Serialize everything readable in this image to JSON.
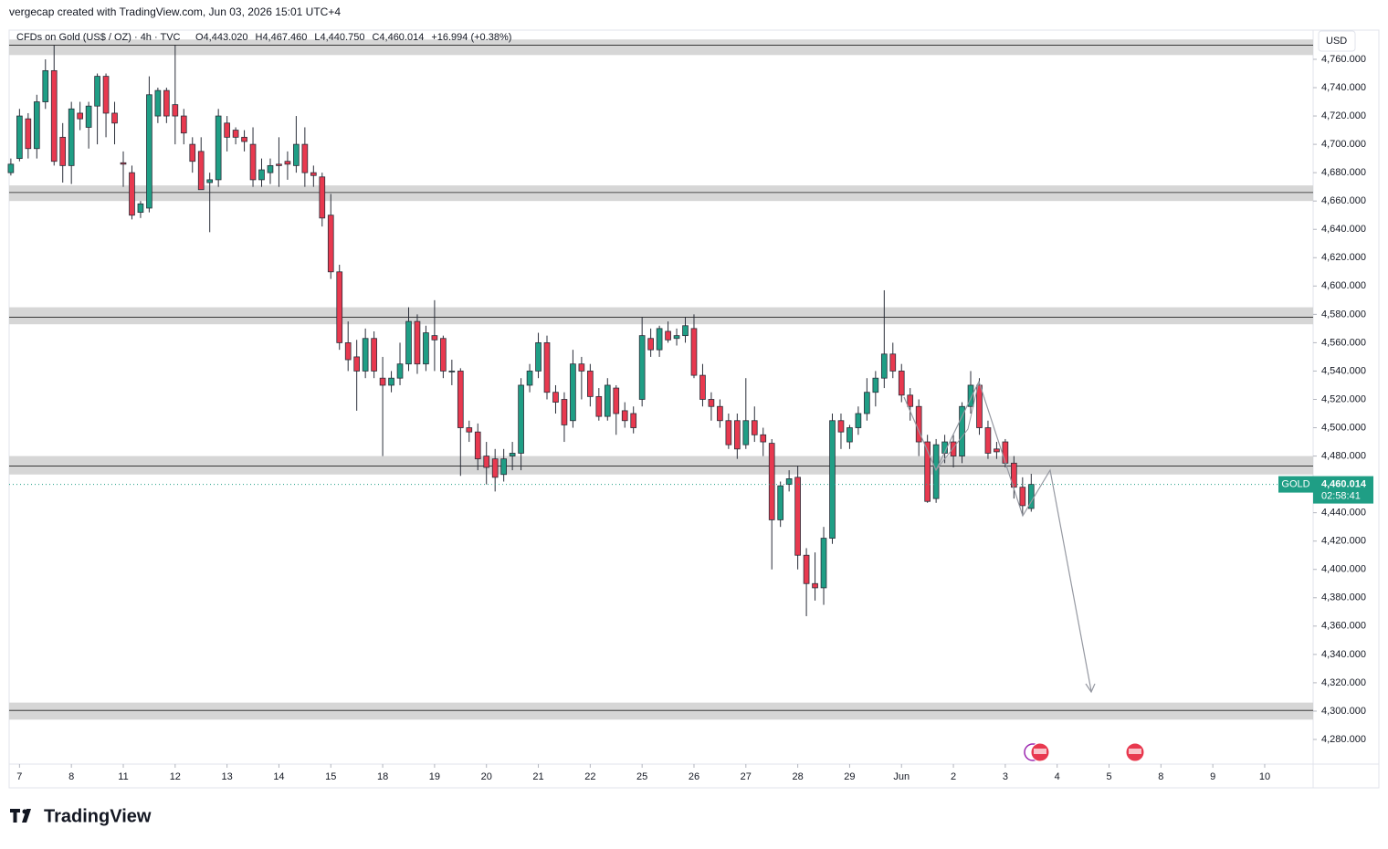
{
  "attribution": "vergecap created with TradingView.com, Jun 03, 2026 15:01 UTC+4",
  "logo": "TradingView",
  "chart_data": {
    "type": "candlestick",
    "symbol": "CFDs on Gold (US$ / OZ) · 4h · TVC",
    "legend_values": [
      "O4,443.020",
      "H4,467.460",
      "L4,440.750",
      "C4,460.014",
      "+16.994 (+0.38%)"
    ],
    "currency": "USD",
    "badge": {
      "name": "GOLD",
      "price": "4,460.014",
      "countdown": "02:58:41"
    },
    "up_color": "#1f9e85",
    "down_color": "#e8394f",
    "ylim": [
      4262.6,
      4780.6
    ],
    "yticks": [
      {
        "value": 4760,
        "label": "4,760.000"
      },
      {
        "value": 4740,
        "label": "4,740.000"
      },
      {
        "value": 4720,
        "label": "4,720.000"
      },
      {
        "value": 4700,
        "label": "4,700.000"
      },
      {
        "value": 4680,
        "label": "4,680.000"
      },
      {
        "value": 4660,
        "label": "4,660.000"
      },
      {
        "value": 4640,
        "label": "4,640.000"
      },
      {
        "value": 4620,
        "label": "4,620.000"
      },
      {
        "value": 4600,
        "label": "4,600.000"
      },
      {
        "value": 4580,
        "label": "4,580.000"
      },
      {
        "value": 4560,
        "label": "4,560.000"
      },
      {
        "value": 4540,
        "label": "4,540.000"
      },
      {
        "value": 4520,
        "label": "4,520.000"
      },
      {
        "value": 4500,
        "label": "4,500.000"
      },
      {
        "value": 4480,
        "label": "4,480.000"
      },
      {
        "value": 4440,
        "label": "4,440.000"
      },
      {
        "value": 4420,
        "label": "4,420.000"
      },
      {
        "value": 4400,
        "label": "4,400.000"
      },
      {
        "value": 4380,
        "label": "4,380.000"
      },
      {
        "value": 4360,
        "label": "4,360.000"
      },
      {
        "value": 4340,
        "label": "4,340.000"
      },
      {
        "value": 4320,
        "label": "4,320.000"
      },
      {
        "value": 4300,
        "label": "4,300.000"
      },
      {
        "value": 4280,
        "label": "4,280.000"
      }
    ],
    "xlim": [
      -0.2,
      150.6
    ],
    "xticks": [
      {
        "value": 1,
        "label": "7"
      },
      {
        "value": 7,
        "label": "8"
      },
      {
        "value": 13,
        "label": "11"
      },
      {
        "value": 19,
        "label": "12"
      },
      {
        "value": 25,
        "label": "13"
      },
      {
        "value": 31,
        "label": "14"
      },
      {
        "value": 37,
        "label": "15"
      },
      {
        "value": 43,
        "label": "18"
      },
      {
        "value": 49,
        "label": "19"
      },
      {
        "value": 55,
        "label": "20"
      },
      {
        "value": 61,
        "label": "21"
      },
      {
        "value": 67,
        "label": "22"
      },
      {
        "value": 73,
        "label": "25"
      },
      {
        "value": 79,
        "label": "26"
      },
      {
        "value": 85,
        "label": "27"
      },
      {
        "value": 91,
        "label": "28"
      },
      {
        "value": 97,
        "label": "29"
      },
      {
        "value": 103,
        "label": "Jun"
      },
      {
        "value": 109,
        "label": "2"
      },
      {
        "value": 115,
        "label": "3"
      },
      {
        "value": 121,
        "label": "4"
      },
      {
        "value": 127,
        "label": "5"
      },
      {
        "value": 133,
        "label": "8"
      },
      {
        "value": 139,
        "label": "9"
      },
      {
        "value": 145,
        "label": "10"
      }
    ],
    "zones": [
      {
        "low": 4763,
        "high": 4774,
        "level": 4770
      },
      {
        "low": 4660,
        "high": 4671,
        "level": 4666
      },
      {
        "low": 4573,
        "high": 4585,
        "level": 4578
      },
      {
        "low": 4467,
        "high": 4480,
        "level": 4473
      },
      {
        "low": 4294,
        "high": 4306,
        "level": 4300.5
      }
    ],
    "ohlc": [
      [
        4680,
        4690,
        4678,
        4686
      ],
      [
        4690,
        4725,
        4688,
        4720
      ],
      [
        4718,
        4722,
        4690,
        4697
      ],
      [
        4697,
        4735,
        4690,
        4730
      ],
      [
        4730,
        4760,
        4725,
        4752
      ],
      [
        4752,
        4770,
        4685,
        4688
      ],
      [
        4705,
        4715,
        4673,
        4685
      ],
      [
        4685,
        4730,
        4672,
        4725
      ],
      [
        4722,
        4730,
        4710,
        4718
      ],
      [
        4712,
        4730,
        4697,
        4727
      ],
      [
        4727,
        4750,
        4700,
        4748
      ],
      [
        4748,
        4750,
        4705,
        4722
      ],
      [
        4722,
        4730,
        4700,
        4715
      ],
      [
        4687,
        4695,
        4670,
        4686
      ],
      [
        4680,
        4685,
        4647,
        4650
      ],
      [
        4652,
        4660,
        4648,
        4658
      ],
      [
        4655,
        4748,
        4652,
        4735
      ],
      [
        4720,
        4740,
        4715,
        4738
      ],
      [
        4738,
        4740,
        4715,
        4720
      ],
      [
        4728,
        4770,
        4700,
        4720
      ],
      [
        4720,
        4725,
        4700,
        4708
      ],
      [
        4700,
        4705,
        4680,
        4688
      ],
      [
        4695,
        4705,
        4668,
        4668
      ],
      [
        4673,
        4680,
        4638,
        4675
      ],
      [
        4675,
        4725,
        4670,
        4720
      ],
      [
        4715,
        4720,
        4695,
        4705
      ],
      [
        4710,
        4712,
        4700,
        4705
      ],
      [
        4705,
        4710,
        4695,
        4702
      ],
      [
        4700,
        4712,
        4670,
        4675
      ],
      [
        4675,
        4690,
        4670,
        4682
      ],
      [
        4680,
        4690,
        4672,
        4685
      ],
      [
        4686,
        4705,
        4670,
        4685
      ],
      [
        4688,
        4695,
        4675,
        4686
      ],
      [
        4685,
        4720,
        4680,
        4700
      ],
      [
        4700,
        4712,
        4670,
        4680
      ],
      [
        4680,
        4685,
        4670,
        4678
      ],
      [
        4677,
        4680,
        4642,
        4648
      ],
      [
        4650,
        4665,
        4605,
        4610
      ],
      [
        4610,
        4615,
        4555,
        4560
      ],
      [
        4560,
        4575,
        4540,
        4548
      ],
      [
        4550,
        4562,
        4512,
        4540
      ],
      [
        4540,
        4570,
        4535,
        4563
      ],
      [
        4563,
        4568,
        4535,
        4540
      ],
      [
        4535,
        4550,
        4480,
        4530
      ],
      [
        4530,
        4540,
        4525,
        4535
      ],
      [
        4535,
        4560,
        4530,
        4545
      ],
      [
        4545,
        4585,
        4540,
        4575
      ],
      [
        4575,
        4580,
        4538,
        4545
      ],
      [
        4545,
        4572,
        4540,
        4567
      ],
      [
        4565,
        4590,
        4540,
        4562
      ],
      [
        4563,
        4565,
        4535,
        4540
      ],
      [
        4540,
        4548,
        4530,
        4540
      ],
      [
        4540,
        4542,
        4466,
        4500
      ],
      [
        4500,
        4505,
        4490,
        4497
      ],
      [
        4497,
        4503,
        4470,
        4478
      ],
      [
        4480,
        4490,
        4460,
        4472
      ],
      [
        4478,
        4485,
        4455,
        4465
      ],
      [
        4467,
        4485,
        4462,
        4478
      ],
      [
        4480,
        4490,
        4470,
        4482
      ],
      [
        4482,
        4535,
        4470,
        4530
      ],
      [
        4530,
        4545,
        4525,
        4540
      ],
      [
        4540,
        4567,
        4535,
        4560
      ],
      [
        4560,
        4565,
        4520,
        4525
      ],
      [
        4525,
        4530,
        4510,
        4518
      ],
      [
        4520,
        4525,
        4490,
        4502
      ],
      [
        4505,
        4555,
        4500,
        4545
      ],
      [
        4545,
        4550,
        4520,
        4540
      ],
      [
        4540,
        4545,
        4515,
        4522
      ],
      [
        4522,
        4528,
        4505,
        4508
      ],
      [
        4508,
        4535,
        4505,
        4530
      ],
      [
        4528,
        4530,
        4495,
        4510
      ],
      [
        4512,
        4518,
        4500,
        4505
      ],
      [
        4510,
        4515,
        4496,
        4500
      ],
      [
        4520,
        4578,
        4515,
        4565
      ],
      [
        4563,
        4570,
        4550,
        4555
      ],
      [
        4555,
        4572,
        4550,
        4570
      ],
      [
        4568,
        4575,
        4560,
        4562
      ],
      [
        4563,
        4570,
        4558,
        4565
      ],
      [
        4565,
        4578,
        4560,
        4572
      ],
      [
        4570,
        4580,
        4535,
        4537
      ],
      [
        4537,
        4545,
        4515,
        4520
      ],
      [
        4520,
        4525,
        4505,
        4515
      ],
      [
        4515,
        4520,
        4500,
        4505
      ],
      [
        4505,
        4510,
        4485,
        4488
      ],
      [
        4505,
        4510,
        4478,
        4485
      ],
      [
        4488,
        4535,
        4485,
        4505
      ],
      [
        4505,
        4515,
        4490,
        4495
      ],
      [
        4495,
        4500,
        4480,
        4490
      ],
      [
        4489,
        4492,
        4400,
        4435
      ],
      [
        4435,
        4462,
        4430,
        4459
      ],
      [
        4460,
        4470,
        4455,
        4464
      ],
      [
        4465,
        4473,
        4400,
        4410
      ],
      [
        4410,
        4415,
        4367,
        4390
      ],
      [
        4390,
        4412,
        4378,
        4387
      ],
      [
        4387,
        4430,
        4375,
        4422
      ],
      [
        4422,
        4510,
        4418,
        4505
      ],
      [
        4505,
        4510,
        4485,
        4497
      ],
      [
        4490,
        4502,
        4485,
        4500
      ],
      [
        4500,
        4515,
        4495,
        4510
      ],
      [
        4510,
        4535,
        4505,
        4525
      ],
      [
        4525,
        4540,
        4515,
        4535
      ],
      [
        4535,
        4597,
        4528,
        4552
      ],
      [
        4552,
        4560,
        4535,
        4540
      ],
      [
        4540,
        4545,
        4518,
        4523
      ],
      [
        4523,
        4528,
        4505,
        4515
      ],
      [
        4515,
        4520,
        4480,
        4490
      ],
      [
        4490,
        4495,
        4447,
        4448
      ],
      [
        4450,
        4492,
        4447,
        4488
      ],
      [
        4482,
        4495,
        4475,
        4490
      ],
      [
        4490,
        4495,
        4472,
        4480
      ],
      [
        4480,
        4518,
        4475,
        4515
      ],
      [
        4515,
        4540,
        4510,
        4530
      ],
      [
        4530,
        4535,
        4495,
        4500
      ],
      [
        4500,
        4505,
        4478,
        4482
      ],
      [
        4485,
        4490,
        4478,
        4483
      ],
      [
        4490,
        4492,
        4472,
        4475
      ],
      [
        4475,
        4480,
        4450,
        4458
      ],
      [
        4458,
        4465,
        4438,
        4445
      ],
      [
        4443.02,
        4467.46,
        4440.75,
        4460.014
      ]
    ]
  }
}
